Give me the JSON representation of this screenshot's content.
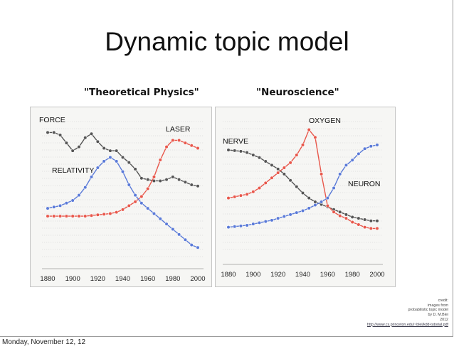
{
  "slide": {
    "title": "Dynamic topic model",
    "footer": "Monday, November 12, 12",
    "credit": {
      "lines": [
        "credit:",
        "images from",
        "probabilistic topic model",
        "by D. M.Blei",
        "2012"
      ],
      "url": "http://www.cs.princeton.edu/~blei/kdd-tutorial.pdf"
    }
  },
  "chart_data": [
    {
      "type": "line",
      "title": "\"Theoretical Physics\"",
      "x_ticks": [
        1880,
        1900,
        1920,
        1940,
        1960,
        1980,
        2000
      ],
      "xlim": [
        1880,
        2000
      ],
      "ylim": [
        0,
        1
      ],
      "grid": true,
      "series": [
        {
          "name": "FORCE",
          "color": "#555555",
          "x": [
            1880,
            1885,
            1890,
            1895,
            1900,
            1905,
            1910,
            1915,
            1920,
            1925,
            1930,
            1935,
            1940,
            1945,
            1950,
            1955,
            1960,
            1965,
            1970,
            1975,
            1980,
            1985,
            1990,
            1995,
            2000
          ],
          "values": [
            0.96,
            0.96,
            0.94,
            0.88,
            0.82,
            0.85,
            0.92,
            0.95,
            0.89,
            0.84,
            0.82,
            0.82,
            0.77,
            0.73,
            0.68,
            0.61,
            0.6,
            0.59,
            0.59,
            0.6,
            0.62,
            0.6,
            0.58,
            0.56,
            0.55
          ]
        },
        {
          "name": "LASER",
          "color": "#e8574b",
          "x": [
            1880,
            1885,
            1890,
            1895,
            1900,
            1905,
            1910,
            1915,
            1920,
            1925,
            1930,
            1935,
            1940,
            1945,
            1950,
            1955,
            1960,
            1965,
            1970,
            1975,
            1980,
            1985,
            1990,
            1995,
            2000
          ],
          "values": [
            0.32,
            0.32,
            0.32,
            0.32,
            0.32,
            0.32,
            0.32,
            0.325,
            0.33,
            0.335,
            0.34,
            0.35,
            0.37,
            0.4,
            0.43,
            0.47,
            0.53,
            0.62,
            0.75,
            0.85,
            0.9,
            0.9,
            0.88,
            0.86,
            0.84
          ]
        },
        {
          "name": "RELATIVITY",
          "color": "#5a7ad8",
          "x": [
            1880,
            1885,
            1890,
            1895,
            1900,
            1905,
            1910,
            1915,
            1920,
            1925,
            1930,
            1935,
            1940,
            1945,
            1950,
            1955,
            1960,
            1965,
            1970,
            1975,
            1980,
            1985,
            1990,
            1995,
            2000
          ],
          "values": [
            0.38,
            0.39,
            0.4,
            0.42,
            0.44,
            0.48,
            0.54,
            0.62,
            0.69,
            0.74,
            0.77,
            0.74,
            0.66,
            0.56,
            0.48,
            0.42,
            0.38,
            0.34,
            0.3,
            0.26,
            0.22,
            0.18,
            0.14,
            0.1,
            0.08
          ]
        }
      ],
      "labels": [
        "FORCE",
        "LASER",
        "RELATIVITY"
      ]
    },
    {
      "type": "line",
      "title": "\"Neuroscience\"",
      "x_ticks": [
        1880,
        1900,
        1920,
        1940,
        1960,
        1980,
        2000
      ],
      "xlim": [
        1880,
        2000
      ],
      "ylim": [
        0,
        1
      ],
      "grid": true,
      "series": [
        {
          "name": "NERVE",
          "color": "#555555",
          "x": [
            1880,
            1885,
            1890,
            1895,
            1900,
            1905,
            1910,
            1915,
            1920,
            1925,
            1930,
            1935,
            1940,
            1945,
            1950,
            1955,
            1960,
            1965,
            1970,
            1975,
            1980,
            1985,
            1990,
            1995,
            2000
          ],
          "values": [
            0.82,
            0.815,
            0.81,
            0.8,
            0.78,
            0.76,
            0.73,
            0.7,
            0.67,
            0.63,
            0.58,
            0.53,
            0.48,
            0.44,
            0.41,
            0.39,
            0.37,
            0.35,
            0.33,
            0.31,
            0.29,
            0.28,
            0.27,
            0.26,
            0.26
          ]
        },
        {
          "name": "OXYGEN",
          "color": "#e8574b",
          "x": [
            1880,
            1885,
            1890,
            1895,
            1900,
            1905,
            1910,
            1915,
            1920,
            1925,
            1930,
            1935,
            1940,
            1945,
            1950,
            1955,
            1960,
            1965,
            1970,
            1975,
            1980,
            1985,
            1990,
            1995,
            2000
          ],
          "values": [
            0.44,
            0.45,
            0.46,
            0.47,
            0.49,
            0.52,
            0.56,
            0.6,
            0.64,
            0.68,
            0.72,
            0.78,
            0.86,
            0.98,
            0.92,
            0.63,
            0.38,
            0.33,
            0.3,
            0.28,
            0.25,
            0.23,
            0.21,
            0.2,
            0.2
          ]
        },
        {
          "name": "NEURON",
          "color": "#5a7ad8",
          "x": [
            1880,
            1885,
            1890,
            1895,
            1900,
            1905,
            1910,
            1915,
            1920,
            1925,
            1930,
            1935,
            1940,
            1945,
            1950,
            1955,
            1960,
            1965,
            1970,
            1975,
            1980,
            1985,
            1990,
            1995,
            2000
          ],
          "values": [
            0.21,
            0.215,
            0.22,
            0.225,
            0.235,
            0.245,
            0.255,
            0.265,
            0.28,
            0.295,
            0.31,
            0.325,
            0.34,
            0.36,
            0.385,
            0.41,
            0.44,
            0.52,
            0.63,
            0.7,
            0.74,
            0.79,
            0.83,
            0.85,
            0.86
          ]
        }
      ],
      "labels": [
        "NERVE",
        "OXYGEN",
        "NEURON"
      ]
    }
  ]
}
